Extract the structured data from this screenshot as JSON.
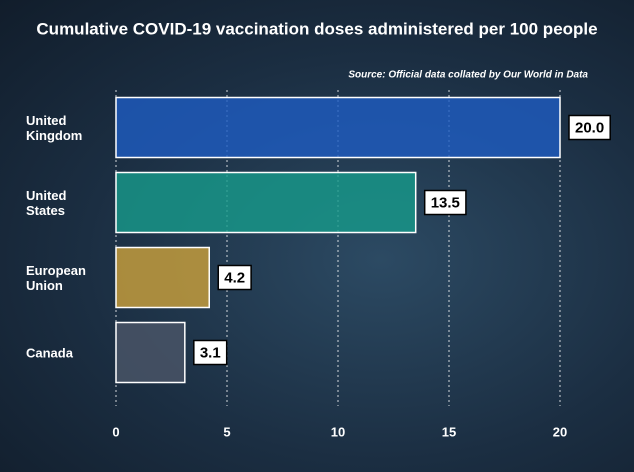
{
  "chart_data": {
    "type": "hbar",
    "title": "Cumulative COVID-19 vaccination doses administered per 100 people",
    "source": "Source: Official data collated by Our World in Data",
    "categories": [
      "United Kingdom",
      "United States",
      "European Union",
      "Canada"
    ],
    "values": [
      20.0,
      13.5,
      4.2,
      3.1
    ],
    "value_labels": [
      "20.0",
      "13.5",
      "4.2",
      "3.1"
    ],
    "colors": [
      "#1f5cc0",
      "#17998a",
      "#c9a03c",
      "#4a5668"
    ],
    "xlim": [
      0,
      20
    ],
    "xticks": [
      0,
      5,
      10,
      15,
      20
    ],
    "grid": true
  }
}
